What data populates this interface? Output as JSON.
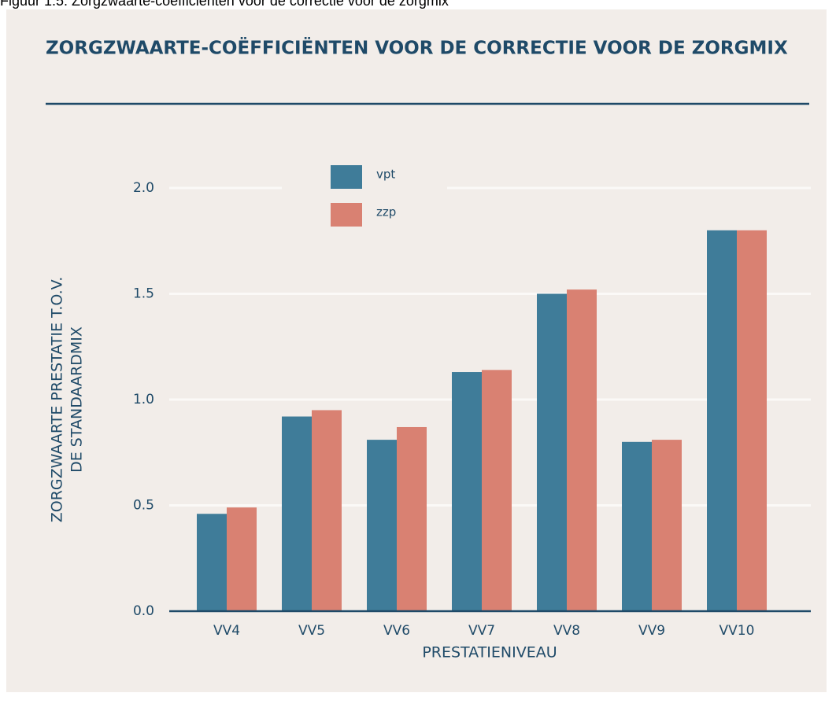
{
  "caption": "Figuur 1.5: Zorgzwaarte-coëfficiënten voor de correctie voor de zorgmix",
  "chart_data": {
    "type": "bar",
    "title": "ZORGZWAARTE-COËFFICIËNTEN VOOR DE CORRECTIE VOOR DE ZORGMIX",
    "ylabel": [
      "ZORGZWAARTE PRESTATIE T.O.V.",
      "DE STANDAARDMIX"
    ],
    "xlabel": "PRESTATIENIVEAU",
    "categories": [
      "VV4",
      "VV5",
      "VV6",
      "VV7",
      "VV8",
      "VV9",
      "VV10"
    ],
    "series": [
      {
        "name": "vpt",
        "color": "#3f7c99",
        "values": [
          0.46,
          0.92,
          0.81,
          1.13,
          1.5,
          0.8,
          1.8
        ]
      },
      {
        "name": "zzp",
        "color": "#d98172",
        "values": [
          0.49,
          0.95,
          0.87,
          1.14,
          1.52,
          0.81,
          1.8
        ]
      }
    ],
    "ylim": [
      0,
      2.0
    ],
    "yticks": [
      {
        "value": 0,
        "label": "0.0"
      },
      0.5,
      {
        "value": 1,
        "label": "1.0"
      },
      1.5,
      {
        "value": 2,
        "label": "2.0"
      }
    ],
    "grid": true
  }
}
